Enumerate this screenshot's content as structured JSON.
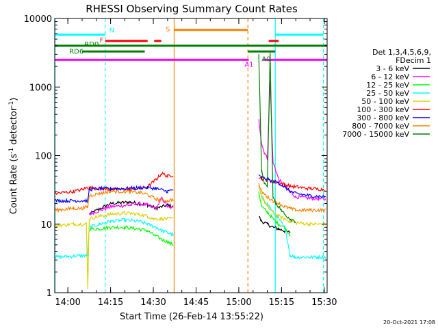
{
  "chart_data": {
    "type": "line",
    "title": "RHESSI Observing Summary Count Rates",
    "xlabel": "Start Time (26-Feb-14 13:55:22)",
    "ylabel": "Count Rate (s⁻¹ detector⁻¹)",
    "x_unit": "minutes after 14:00",
    "xlim": [
      -4.6,
      91
    ],
    "ylim": [
      1,
      10000
    ],
    "yscale": "log",
    "grid": false,
    "x_ticks": [
      {
        "v": 0,
        "label": "14:00"
      },
      {
        "v": 15,
        "label": "14:15"
      },
      {
        "v": 30,
        "label": "14:30"
      },
      {
        "v": 45,
        "label": "14:45"
      },
      {
        "v": 60,
        "label": "15:00"
      },
      {
        "v": 75,
        "label": "15:15"
      },
      {
        "v": 90,
        "label": "15:30"
      }
    ],
    "y_ticks": [
      {
        "v": 1,
        "label": "1"
      },
      {
        "v": 10,
        "label": "10"
      },
      {
        "v": 100,
        "label": "100"
      },
      {
        "v": 1000,
        "label": "1000"
      },
      {
        "v": 10000,
        "label": "10000"
      }
    ],
    "legend": {
      "placement": "right",
      "header": [
        "Det 1,3,4,5,6,9,",
        "FDecim 1"
      ]
    },
    "series": [
      {
        "name": "3 - 6 keV",
        "color": "#000000",
        "x": [
          -4.5,
          7.0,
          7.5,
          15,
          22,
          28,
          31,
          35,
          37,
          38,
          66,
          67,
          68,
          70,
          72,
          74,
          76,
          78,
          80,
          85,
          90.5
        ],
        "y": [
          null,
          null,
          14,
          20,
          21,
          19,
          17,
          19,
          18,
          null,
          null,
          13,
          11,
          10,
          9,
          8.5,
          8,
          7.5,
          null,
          null,
          null
        ]
      },
      {
        "name": "6 - 12 keV",
        "color": "#ff00ff",
        "x": [
          -4.5,
          7.0,
          7.5,
          15,
          22,
          25,
          28,
          31,
          33,
          35,
          37,
          38,
          66,
          67,
          68,
          69,
          70,
          71,
          72,
          73,
          74,
          76,
          78,
          80,
          85,
          90.5
        ],
        "y": [
          null,
          null,
          14,
          18,
          19,
          20,
          19,
          17,
          24,
          18,
          17,
          null,
          null,
          350,
          150,
          110,
          90,
          1200,
          80,
          60,
          45,
          35,
          30,
          25,
          24,
          23
        ]
      },
      {
        "name": "12 - 25 keV",
        "color": "#00ff00",
        "x": [
          -4.5,
          7.0,
          7.5,
          11,
          15,
          20,
          25,
          28,
          30,
          33,
          35,
          37,
          38,
          66,
          67,
          68,
          70,
          72,
          74,
          76,
          78,
          80,
          85,
          90.5
        ],
        "y": [
          null,
          null,
          8.5,
          8.5,
          9,
          9,
          8.5,
          8,
          7,
          6,
          5.5,
          5,
          null,
          null,
          30,
          18,
          15,
          12,
          10,
          9,
          7,
          null,
          null,
          null
        ]
      },
      {
        "name": "25 - 50 keV",
        "color": "#00ffff",
        "x": [
          -4.5,
          6.5,
          7.0,
          7.5,
          11,
          15,
          20,
          25,
          28,
          31,
          33,
          35,
          37,
          38,
          66,
          67,
          68,
          70,
          72,
          74,
          76,
          77,
          78,
          80,
          85,
          90.5
        ],
        "y": [
          3.3,
          3.5,
          3.6,
          9,
          10,
          11,
          11.5,
          11,
          10,
          9,
          8,
          7.5,
          7,
          null,
          null,
          35,
          25,
          20,
          15,
          12,
          9,
          6,
          3.5,
          3.3,
          3.3,
          3.3
        ]
      },
      {
        "name": "50 - 100 keV",
        "color": "#e0d000",
        "x": [
          -4.5,
          2,
          5,
          6.5,
          7.0,
          7.5,
          11,
          15,
          20,
          25,
          28,
          30,
          33,
          35,
          37,
          38,
          66,
          67,
          68,
          70,
          72,
          74,
          76,
          78,
          80,
          85,
          90.5
        ],
        "y": [
          9.5,
          10,
          10,
          10,
          1.2,
          12,
          13,
          14,
          14.5,
          14,
          13,
          12,
          12,
          12,
          12,
          null,
          null,
          38,
          25,
          18,
          15,
          13,
          12,
          11,
          10.5,
          10,
          10
        ]
      },
      {
        "name": "100 - 300 keV",
        "color": "#ff0000",
        "x": [
          -4.5,
          2,
          5,
          7,
          7.5,
          11,
          15,
          20,
          25,
          28,
          31,
          33,
          35,
          37,
          38,
          66,
          67,
          68,
          70,
          72,
          74,
          76,
          78,
          80,
          85,
          90.5
        ],
        "y": [
          28,
          30,
          32,
          34,
          34,
          33,
          32,
          32,
          33,
          35,
          45,
          55,
          50,
          52,
          null,
          null,
          48,
          46,
          44,
          42,
          40,
          38,
          36,
          35,
          33,
          32
        ]
      },
      {
        "name": "300 - 800 keV",
        "color": "#0000ff",
        "x": [
          -4.5,
          2,
          7,
          7.5,
          11,
          15,
          20,
          25,
          28,
          31,
          35,
          37,
          38,
          66,
          67,
          68,
          70,
          72,
          74,
          76,
          78,
          80,
          85,
          90.5
        ],
        "y": [
          22,
          22,
          22,
          32,
          33,
          33,
          33,
          34,
          34,
          33,
          30,
          32,
          null,
          null,
          50,
          48,
          45,
          42,
          40,
          35,
          30,
          28,
          26,
          25
        ]
      },
      {
        "name": "800 - 7000 keV",
        "color": "#ff8000",
        "x": [
          -4.5,
          2,
          5,
          7,
          7.5,
          11,
          15,
          20,
          25,
          28,
          31,
          35,
          37,
          38,
          66,
          67,
          68,
          70,
          72,
          74,
          76,
          78,
          80,
          85,
          90.5
        ],
        "y": [
          16,
          17,
          17,
          18,
          26,
          28,
          30,
          30,
          29,
          27,
          23,
          22,
          23,
          null,
          null,
          38,
          30,
          25,
          22,
          20,
          18,
          17,
          16,
          16,
          16
        ]
      },
      {
        "name": "7000 - 15000 keV",
        "color": "#008000",
        "x": [
          -4.5,
          7.5,
          15,
          25,
          35,
          37,
          66,
          67,
          68,
          69,
          70,
          71,
          72,
          73,
          74,
          76,
          78,
          80,
          85,
          90.5
        ],
        "y": [
          null,
          null,
          null,
          null,
          null,
          null,
          null,
          3000,
          60,
          40,
          35,
          3000,
          25,
          20,
          18,
          14,
          12,
          11,
          null,
          null
        ]
      }
    ],
    "vlines": [
      {
        "x": -4.5,
        "color": "#00ffff",
        "style": "solid"
      },
      {
        "x": 13.1,
        "color": "#00ffff",
        "style": "dashed"
      },
      {
        "x": 37.3,
        "color": "#ff8000",
        "style": "solid"
      },
      {
        "x": 63.2,
        "color": "#ff8000",
        "style": "dashed"
      },
      {
        "x": 72.8,
        "color": "#00ffff",
        "style": "solid"
      },
      {
        "x": 89.7,
        "color": "#00ffff",
        "style": "dashed"
      }
    ],
    "flag_bars": [
      {
        "label": "N",
        "color": "#00ffff",
        "y": 5800,
        "segments": [
          [
            -4.5,
            13.1
          ],
          [
            72.8,
            89.7
          ]
        ]
      },
      {
        "label": "F",
        "color": "#ff0000",
        "y": 4700,
        "segments": [
          [
            13.1,
            28.0
          ],
          [
            30.3,
            32.8
          ],
          [
            70.5,
            74.0
          ]
        ]
      },
      {
        "label": "S",
        "color": "#ff8000",
        "y": 6800,
        "segments": [
          [
            37.3,
            63.2
          ]
        ]
      },
      {
        "label": "RD0",
        "color": "#008000",
        "y": 4000,
        "segments": [
          [
            -4.5,
            91
          ]
        ]
      },
      {
        "label": "RD6",
        "color": "#008000",
        "y": 3300,
        "segments": [
          [
            5.0,
            27.0
          ],
          [
            63.2,
            72.8
          ]
        ]
      },
      {
        "label": "A0",
        "color": "#008000",
        "y": 3300,
        "segments": []
      },
      {
        "label": "A1",
        "color": "#ff00ff",
        "y": 2500,
        "segments": [
          [
            -4.5,
            63.5
          ],
          [
            68.5,
            91
          ]
        ]
      }
    ]
  },
  "footer_timestamp": "20-Oct-2021 17:08"
}
